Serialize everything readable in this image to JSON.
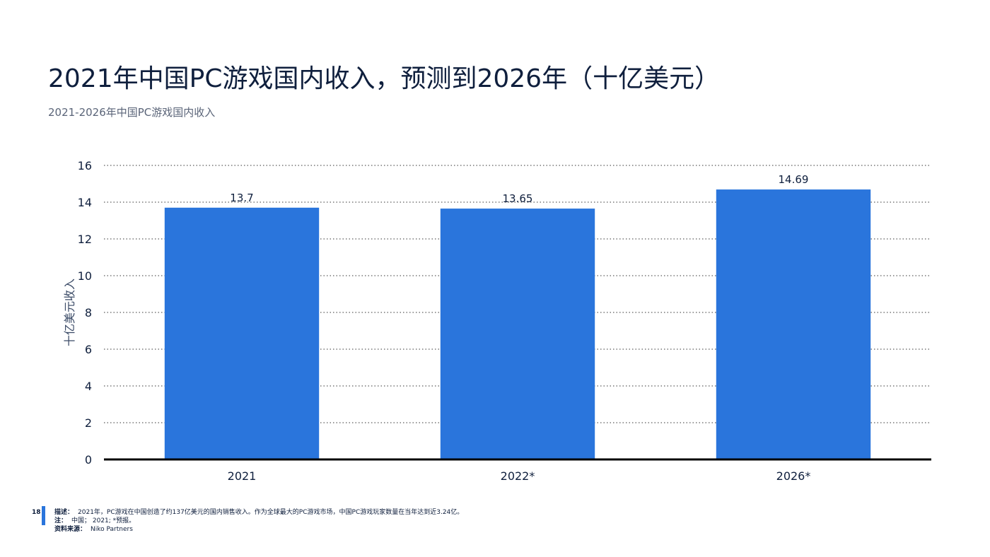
{
  "title": "2021年中国PC游戏国内收入，预测到2026年（十亿美元）",
  "subtitle": "2021-2026年中国PC游戏国内收入",
  "colors": {
    "bar": "#2a75dc",
    "axis": "#000000",
    "grid": "#333333",
    "accent": "#2a75dc"
  },
  "chart_data": {
    "type": "bar",
    "categories": [
      "2021",
      "2022*",
      "2026*"
    ],
    "values": [
      13.7,
      13.65,
      14.69
    ],
    "value_labels": [
      "13.7",
      "13.65",
      "14.69"
    ],
    "ylabel": "十亿美元收入",
    "xlabel": "",
    "ylim": [
      0,
      16
    ],
    "yticks": [
      0,
      2,
      4,
      6,
      8,
      10,
      12,
      14,
      16
    ],
    "grid": true,
    "grid_style": "dotted"
  },
  "footer": {
    "page_number": "18",
    "description_label": "描述：",
    "description": "2021年，PC游戏在中国创造了约137亿美元的国内销售收入。作为全球最大的PC游戏市场，中国PC游戏玩家数量在当年达到近3.24亿。",
    "note_label": "注：",
    "note": "中国； 2021; *预报。",
    "source_label": "资料来源：",
    "source": "Niko Partners"
  }
}
